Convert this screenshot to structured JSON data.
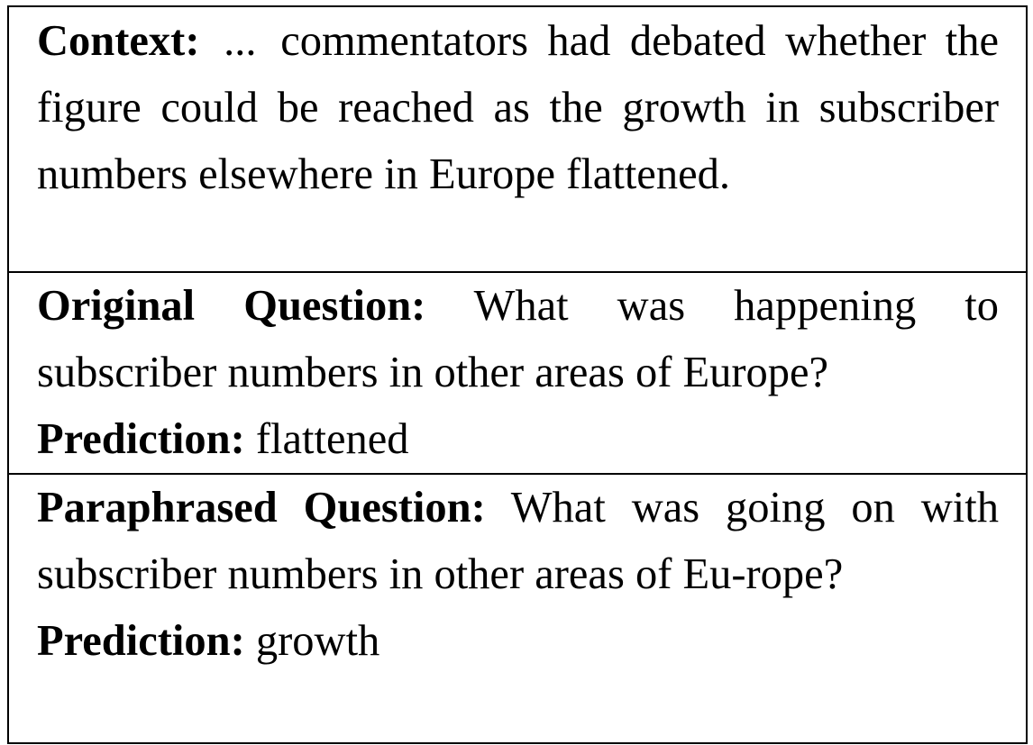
{
  "context": {
    "label": "Context:",
    "ellipsis": "...",
    "text": "commentators had debated whether the figure could be reached as the growth in subscriber numbers elsewhere in Europe flattened."
  },
  "original": {
    "label": "Original Question:",
    "question": "What was happening to subscriber numbers in other areas of Europe?",
    "prediction_label": "Prediction:",
    "prediction": "flattened"
  },
  "paraphrased": {
    "label": "Paraphrased Question:",
    "question": "What was going on with subscriber numbers in other areas of Eu-rope?",
    "prediction_label": "Prediction:",
    "prediction": "growth"
  }
}
